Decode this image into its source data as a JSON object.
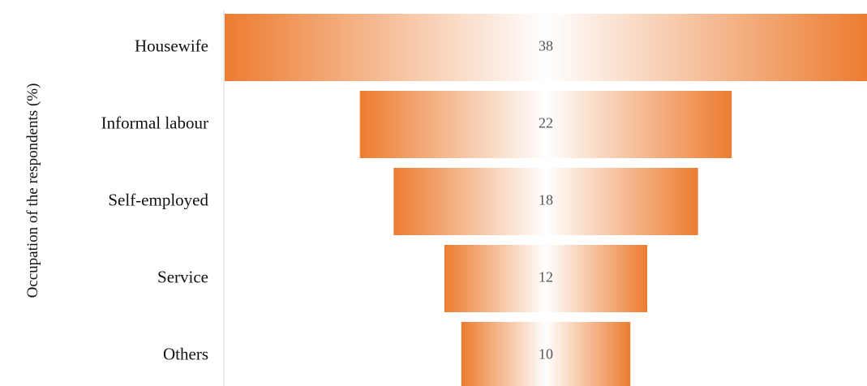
{
  "chart_data": {
    "type": "funnel",
    "title": "",
    "ylabel": "Occupation of the respondents (%)",
    "categories": [
      "Housewife",
      "Informal labour",
      "Self-employed",
      "Service",
      "Others"
    ],
    "values": [
      38,
      22,
      18,
      12,
      10
    ],
    "value_labels": [
      "38",
      "22",
      "18",
      "12",
      "10"
    ],
    "bar_color": "#ec7c30",
    "bar_highlight_color": "#ffffff",
    "axis_color": "#d9d9d9",
    "grid": false,
    "legend": "none"
  }
}
